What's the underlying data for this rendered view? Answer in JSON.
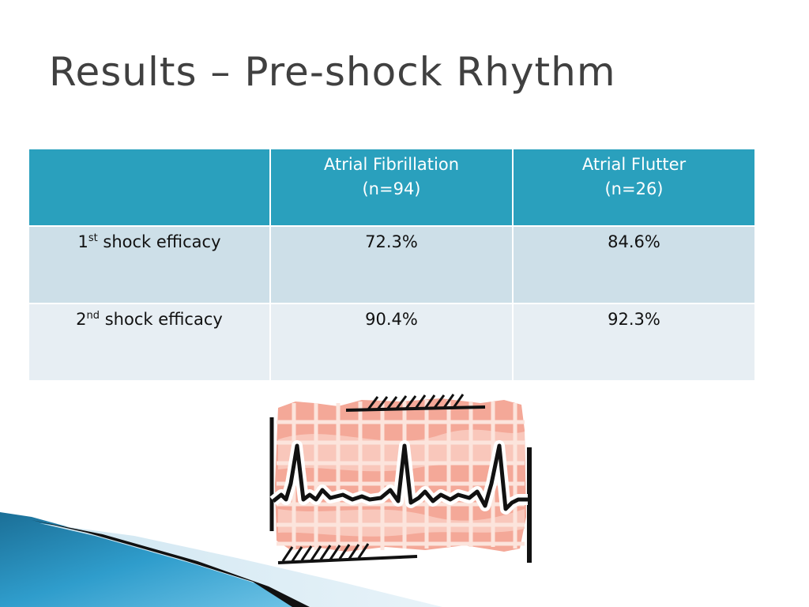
{
  "slide": {
    "title": "Results – Pre-shock Rhythm"
  },
  "table": {
    "headers": [
      {
        "line1": "",
        "line2": ""
      },
      {
        "line1": "Atrial Fibrillation",
        "line2": "(n=94)"
      },
      {
        "line1": "Atrial Flutter",
        "line2": "(n=26)"
      }
    ],
    "rows": [
      {
        "label_num": "1",
        "label_sup": "st",
        "label_text": " shock efficacy",
        "values": [
          "72.3%",
          "84.6%"
        ]
      },
      {
        "label_num": "2",
        "label_sup": "nd",
        "label_text": " shock efficacy",
        "values": [
          "90.4%",
          "92.3%"
        ]
      }
    ]
  },
  "colors": {
    "header_bg": "#2aa0bd",
    "row_odd_bg": "#cddfe8",
    "row_even_bg": "#e7eef3",
    "title_text": "#404040"
  },
  "decorations": {
    "clipart": "ecg-monitor-icon",
    "corner": "blue-swoosh-graphic"
  }
}
